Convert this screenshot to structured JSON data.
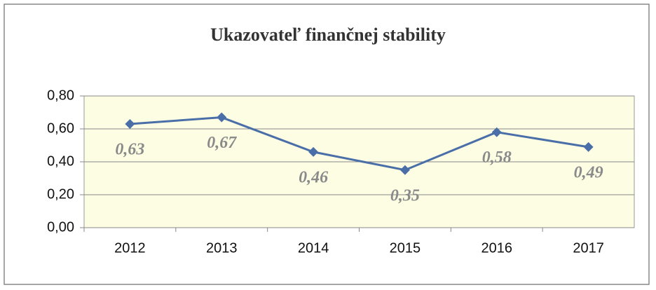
{
  "chart_data": {
    "type": "line",
    "title": "Ukazovateľ finančnej stability",
    "categories": [
      "2012",
      "2013",
      "2014",
      "2015",
      "2016",
      "2017"
    ],
    "series": [
      {
        "name": "Ukazovateľ finančnej stability",
        "color": "#4a6fa8",
        "values": [
          0.63,
          0.67,
          0.46,
          0.35,
          0.58,
          0.49
        ],
        "value_labels": [
          "0,63",
          "0,67",
          "0,46",
          "0,35",
          "0,58",
          "0,49"
        ]
      }
    ],
    "ylim": [
      0,
      0.8
    ],
    "yticks": [
      {
        "value": 0,
        "label": "0,00"
      },
      {
        "value": 0.2,
        "label": "0,20"
      },
      {
        "value": 0.4,
        "label": "0,40"
      },
      {
        "value": 0.6,
        "label": "0,60"
      },
      {
        "value": 0.8,
        "label": "0,80"
      }
    ],
    "grid": true,
    "plot_background": "#fdfde3"
  }
}
